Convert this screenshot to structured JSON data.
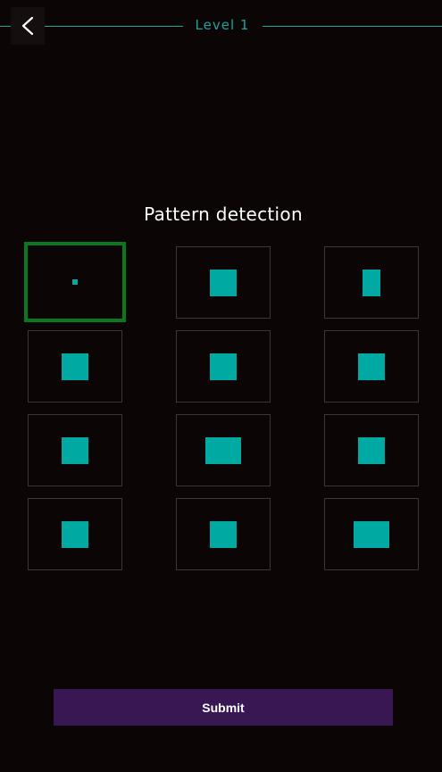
{
  "header": {
    "level_title": "Level 1",
    "back_icon": "chevron-left-icon"
  },
  "main": {
    "title": "Pattern detection",
    "selected_index": 0,
    "colors": {
      "background": "#0b0506",
      "accent": "#1aa39f",
      "shape": "#00aaa2",
      "selection": "#087a1c",
      "submit": "#381753"
    }
  },
  "footer": {
    "submit_label": "Submit"
  }
}
